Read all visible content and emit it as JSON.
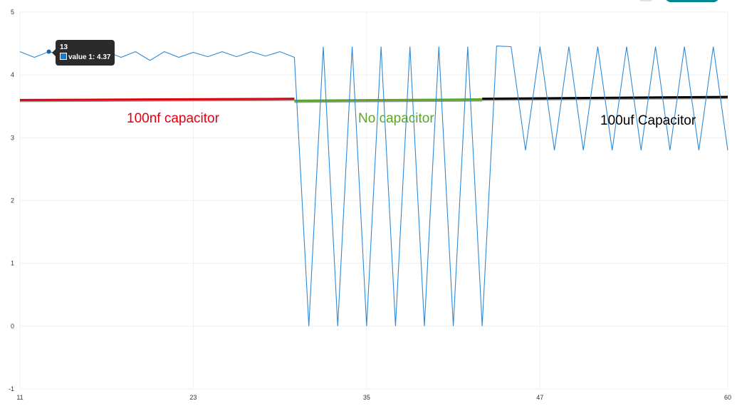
{
  "chart_data": {
    "type": "line",
    "title": "",
    "xlabel": "",
    "ylabel": "",
    "xlim": [
      11,
      60
    ],
    "ylim": [
      -1,
      5
    ],
    "x_ticks": [
      "11",
      "23",
      "35",
      "47",
      "60"
    ],
    "y_ticks": [
      "-1",
      "0",
      "1",
      "2",
      "3",
      "4",
      "5"
    ],
    "grid": true,
    "series": [
      {
        "color": "#2f8ad6",
        "x": [
          11,
          12,
          13,
          14,
          15,
          16,
          17,
          18,
          19,
          20,
          21,
          22,
          23,
          24,
          25,
          26,
          27,
          28,
          29,
          30,
          31,
          32,
          33,
          34,
          35,
          36,
          37,
          38,
          39,
          40,
          41,
          42,
          43,
          44,
          45,
          46,
          47,
          48,
          49,
          50,
          51,
          52,
          53,
          54,
          55,
          56,
          57,
          58,
          59,
          60
        ],
        "values": [
          4.37,
          4.28,
          4.37,
          4.32,
          4.37,
          4.3,
          4.37,
          4.28,
          4.37,
          4.23,
          4.37,
          4.28,
          4.36,
          4.29,
          4.37,
          4.29,
          4.37,
          4.3,
          4.37,
          4.28,
          0,
          4.45,
          0,
          4.45,
          0,
          4.45,
          0,
          4.45,
          0,
          4.45,
          0,
          4.45,
          0,
          4.46,
          4.45,
          2.8,
          4.45,
          2.8,
          4.45,
          2.8,
          4.45,
          2.8,
          4.45,
          2.8,
          4.45,
          2.8,
          4.45,
          2.8,
          4.45,
          2.8
        ]
      }
    ],
    "annotations": [
      {
        "label": "100nf capacitor",
        "color": "#e0000f",
        "x": [
          11,
          30
        ],
        "y": [
          3.6,
          3.62
        ]
      },
      {
        "label": "No capacitor",
        "color": "#5aa728",
        "x": [
          30,
          43
        ],
        "y": [
          3.59,
          3.61
        ]
      },
      {
        "label": "100uf Capacitor",
        "color": "#000000",
        "x": [
          43,
          60
        ],
        "y": [
          3.62,
          3.65
        ]
      }
    ],
    "tooltip": {
      "x_label": "13",
      "series_label": "value 1: 4.37",
      "x": 13,
      "y": 4.37
    }
  }
}
